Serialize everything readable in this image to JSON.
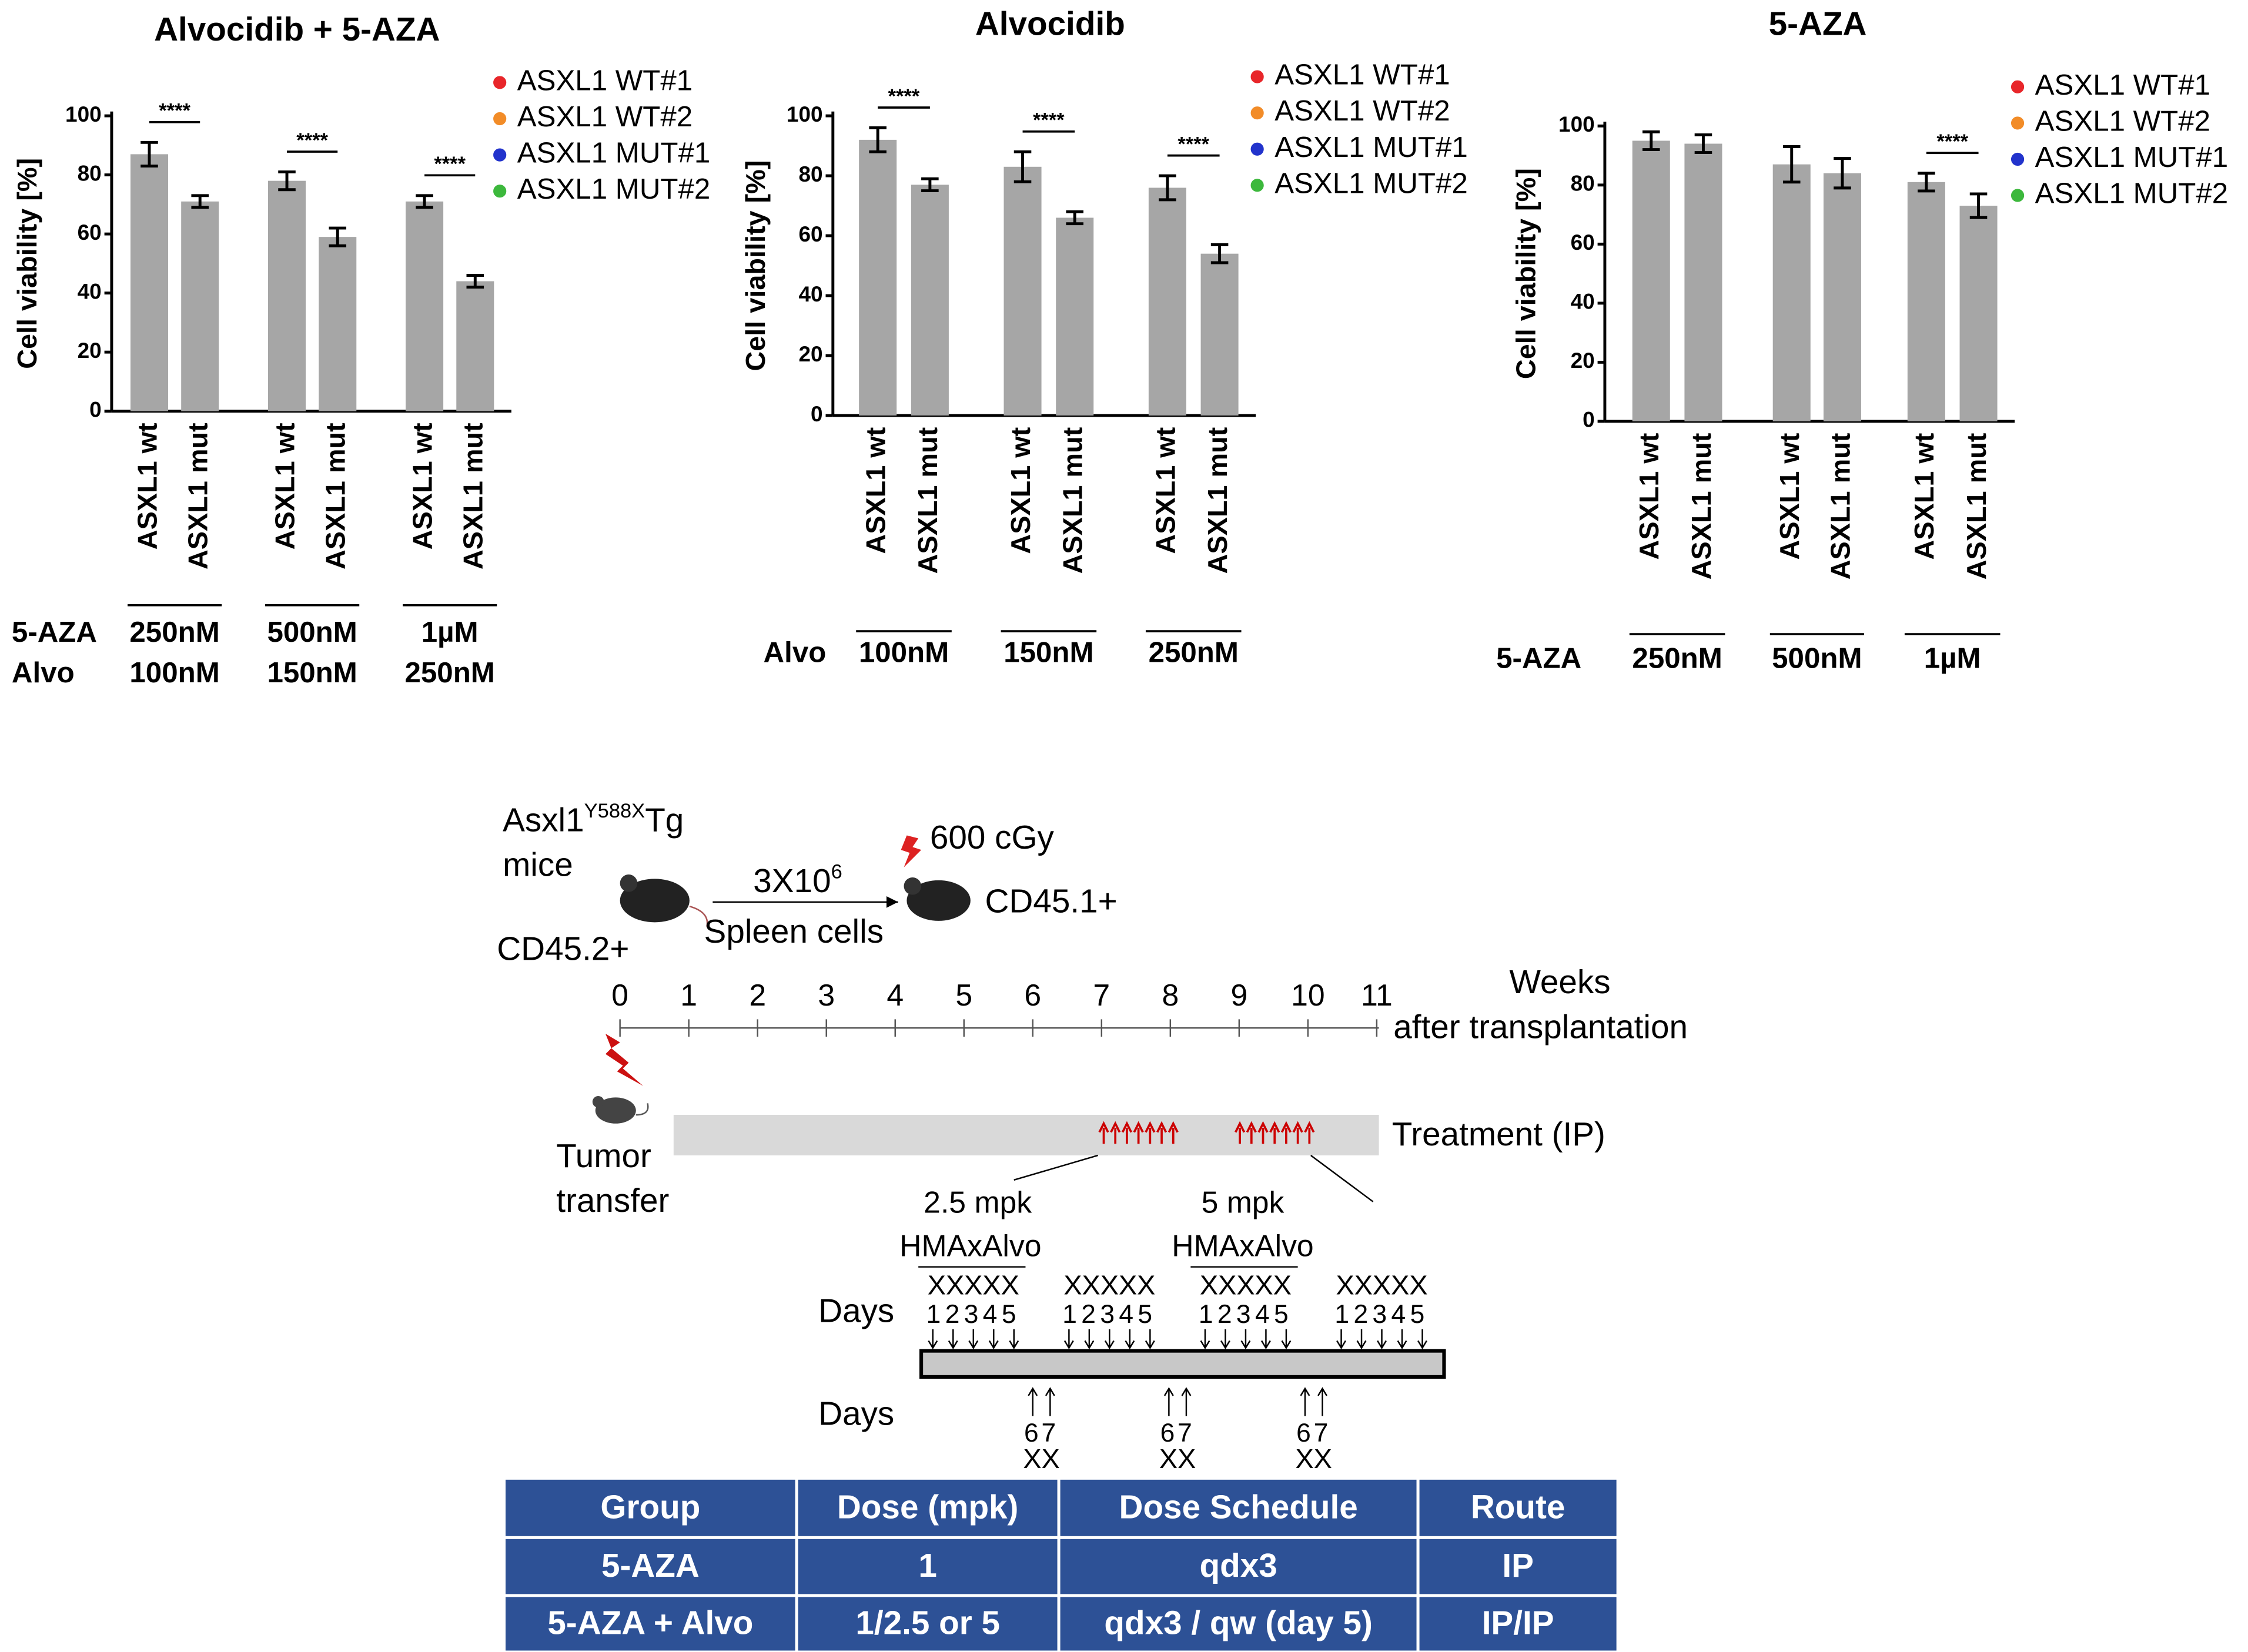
{
  "chart_data": [
    {
      "type": "bar",
      "title": "Alvocidib + 5-AZA",
      "y_label": "Cell viability [%]",
      "categories": [
        "ASXL1 wt",
        "ASXL1 mut",
        "ASXL1 wt",
        "ASXL1 mut",
        "ASXL1 wt",
        "ASXL1 mut"
      ],
      "values": [
        87,
        71,
        78,
        59,
        71,
        44
      ],
      "errors": [
        4,
        2,
        3,
        3,
        2,
        2
      ],
      "color": "#a6a6a6",
      "ylim": [
        0,
        100
      ],
      "yticks": [
        0,
        20,
        40,
        60,
        80,
        100
      ],
      "significance": [
        "****",
        "****",
        "****"
      ],
      "legend": [
        {
          "name": "ASXL1 WT#1",
          "color": "#e8262a"
        },
        {
          "name": "ASXL1 WT#2",
          "color": "#f28c28"
        },
        {
          "name": "ASXL1 MUT#1",
          "color": "#2233cc"
        },
        {
          "name": "ASXL1 MUT#2",
          "color": "#3cb83c"
        }
      ],
      "group_rows": [
        {
          "label": "5-AZA",
          "values": [
            "250nM",
            "500nM",
            "1µM"
          ]
        },
        {
          "label": "Alvo",
          "values": [
            "100nM",
            "150nM",
            "250nM"
          ]
        }
      ]
    },
    {
      "type": "bar",
      "title": "Alvocidib",
      "y_label": "Cell viability [%]",
      "categories": [
        "ASXL1 wt",
        "ASXL1 mut",
        "ASXL1 wt",
        "ASXL1 mut",
        "ASXL1 wt",
        "ASXL1 mut"
      ],
      "values": [
        92,
        77,
        83,
        66,
        76,
        54
      ],
      "errors": [
        4,
        2,
        5,
        2,
        4,
        3
      ],
      "color": "#a6a6a6",
      "ylim": [
        0,
        100
      ],
      "yticks": [
        0,
        20,
        40,
        60,
        80,
        100
      ],
      "significance": [
        "****",
        "****",
        "****"
      ],
      "legend": [
        {
          "name": "ASXL1 WT#1",
          "color": "#e8262a"
        },
        {
          "name": "ASXL1 WT#2",
          "color": "#f28c28"
        },
        {
          "name": "ASXL1 MUT#1",
          "color": "#2233cc"
        },
        {
          "name": "ASXL1 MUT#2",
          "color": "#3cb83c"
        }
      ],
      "group_rows": [
        {
          "label": "Alvo",
          "values": [
            "100nM",
            "150nM",
            "250nM"
          ]
        }
      ]
    },
    {
      "type": "bar",
      "title": "5-AZA",
      "y_label": "Cell viability [%]",
      "categories": [
        "ASXL1 wt",
        "ASXL1 mut",
        "ASXL1 wt",
        "ASXL1 mut",
        "ASXL1 wt",
        "ASXL1 mut"
      ],
      "values": [
        95,
        94,
        87,
        84,
        81,
        73
      ],
      "errors": [
        3,
        3,
        6,
        5,
        3,
        4
      ],
      "color": "#a6a6a6",
      "ylim": [
        0,
        100
      ],
      "yticks": [
        0,
        20,
        40,
        60,
        80,
        100
      ],
      "significance": [
        null,
        null,
        "****"
      ],
      "legend": [
        {
          "name": "ASXL1 WT#1",
          "color": "#e8262a"
        },
        {
          "name": "ASXL1 WT#2",
          "color": "#f28c28"
        },
        {
          "name": "ASXL1 MUT#1",
          "color": "#2233cc"
        },
        {
          "name": "ASXL1 MUT#2",
          "color": "#3cb83c"
        }
      ],
      "group_rows": [
        {
          "label": "5-AZA",
          "values": [
            "250nM",
            "500nM",
            "1µM"
          ]
        }
      ]
    }
  ],
  "diagram": {
    "donor": {
      "gene": "Asxl1",
      "allele": "Y588X",
      "suffix": "Tg",
      "line2": "mice",
      "marker": "CD45.2+"
    },
    "transfer": {
      "base": "3X10",
      "exp": "6",
      "label": "Spleen cells"
    },
    "recipient": {
      "dose": "600 cGy",
      "marker": "CD45.1+"
    },
    "timeline": {
      "ticks": [
        "0",
        "1",
        "2",
        "3",
        "4",
        "5",
        "6",
        "7",
        "8",
        "9",
        "10",
        "11"
      ],
      "unit": "Weeks",
      "unit2": "after transplantation"
    },
    "tumor": {
      "line1": "Tumor",
      "line2": "transfer"
    },
    "treatment": "Treatment (IP)",
    "dose_low": {
      "dose": "2.5 mpk",
      "combo": "HMAxAlvo"
    },
    "dose_high": {
      "dose": "5 mpk",
      "combo": "HMAxAlvo"
    },
    "days_label": "Days",
    "weekday_blocks": [
      {
        "marks": "XXXXX",
        "days": "12345"
      },
      {
        "marks": "XXXXX",
        "days": "12345"
      },
      {
        "marks": "XXXXX",
        "days": "12345"
      },
      {
        "marks": "XXXXX",
        "days": "12345"
      }
    ],
    "weekend_blocks": [
      {
        "days": "67",
        "marks": "XX"
      },
      {
        "days": "67",
        "marks": "XX"
      },
      {
        "days": "67",
        "marks": "XX"
      }
    ]
  },
  "table": {
    "header": [
      "Group",
      "Dose (mpk)",
      "Dose Schedule",
      "Route"
    ],
    "rows": [
      [
        "5-AZA",
        "1",
        "qdx3",
        "IP"
      ],
      [
        "5-AZA + Alvo",
        "1/2.5 or 5",
        "qdx3 / qw (day 5)",
        "IP/IP"
      ]
    ]
  }
}
